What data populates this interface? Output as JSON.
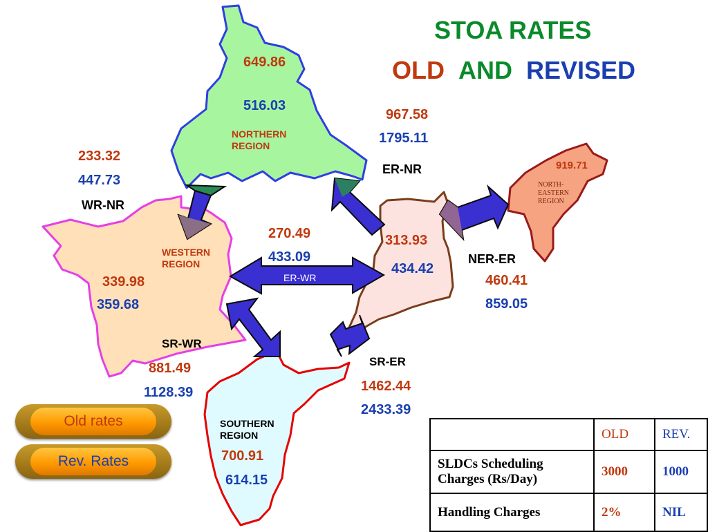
{
  "title": {
    "line1": "STOA  RATES",
    "old": "OLD",
    "and": "AND",
    "revised": "REVISED"
  },
  "colors": {
    "old": "#c0390f",
    "revised": "#1a3fb0",
    "title_green": "#0a8a2a",
    "arrow_fill": "#3a2fd0",
    "arrow_stroke": "#0a0a0a",
    "northern_fill": "#a8f5a0",
    "northern_border": "#2f3fe0",
    "western_fill": "#ffe0b8",
    "western_border": "#e63fe6",
    "eastern_fill": "#fde3e0",
    "eastern_border": "#7a3d1a",
    "southern_fill": "#e0fbff",
    "southern_border": "#e60000",
    "northeastern_fill": "#f6a382",
    "northeastern_border": "#9a1a1a"
  },
  "regions": {
    "northern": {
      "name_line1": "NORTHERN",
      "name_line2": "REGION",
      "old": "649.86",
      "rev": "516.03"
    },
    "western": {
      "name_line1": "WESTERN",
      "name_line2": "REGION",
      "old": "339.98",
      "rev": "359.68"
    },
    "eastern": {
      "old": "313.93",
      "rev": "434.42"
    },
    "southern": {
      "name_line1": "SOUTHERN",
      "name_line2": "REGION",
      "old": "700.91",
      "rev": "614.15"
    },
    "northeastern": {
      "name_line1": "NORTH-",
      "name_line2": "EASTERN",
      "name_line3": "REGION",
      "old": "919.71"
    }
  },
  "links": {
    "er_nr": {
      "label": "ER-NR",
      "old": "967.58",
      "rev": "1795.11"
    },
    "wr_nr": {
      "label": "WR-NR",
      "old": "233.32",
      "rev": "447.73"
    },
    "er_wr": {
      "label": "ER-WR",
      "old": "270.49",
      "rev": "433.09"
    },
    "ner_er": {
      "label": "NER-ER",
      "old": "460.41",
      "rev": "859.05"
    },
    "sr_wr": {
      "label": "SR-WR",
      "old": "881.49",
      "rev": "1128.39"
    },
    "sr_er": {
      "label": "SR-ER",
      "old": "1462.44",
      "rev": "2433.39"
    }
  },
  "buttons": {
    "old_rates": "Old rates",
    "rev_rates": "Rev. Rates"
  },
  "table": {
    "headers": [
      "",
      "OLD",
      "REV."
    ],
    "rows": [
      {
        "label": "SLDCs Scheduling Charges (Rs/Day)",
        "old": "3000",
        "rev": "1000"
      },
      {
        "label": "Handling Charges",
        "old": "2%",
        "rev": "NIL"
      }
    ]
  }
}
